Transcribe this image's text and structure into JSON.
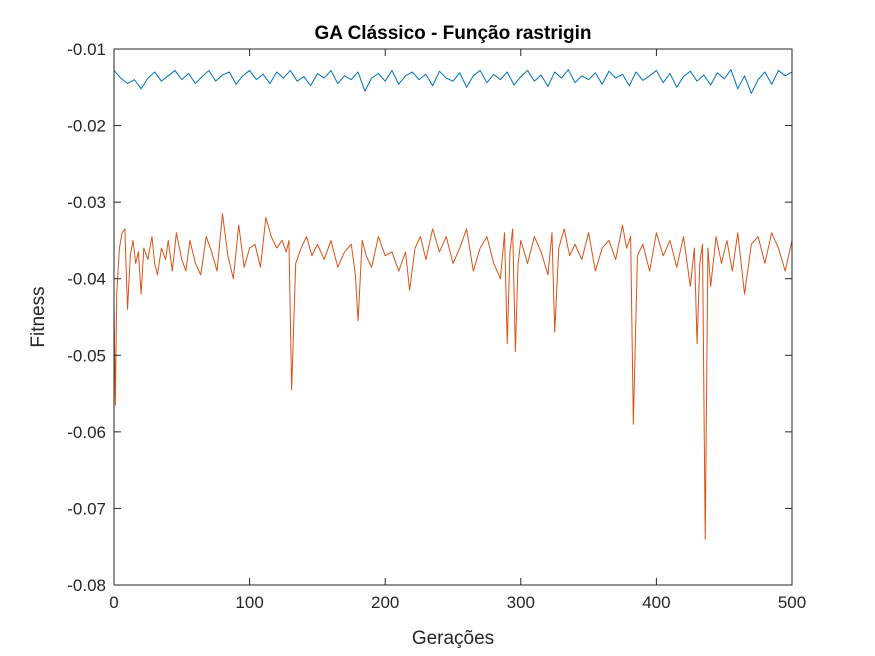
{
  "chart_data": {
    "type": "line",
    "title": "GA Clássico - Função rastrigin",
    "xlabel": "Gerações",
    "ylabel": "Fitness",
    "xlim": [
      0,
      500
    ],
    "ylim": [
      -0.08,
      -0.01
    ],
    "xticks": [
      0,
      100,
      200,
      300,
      400,
      500
    ],
    "yticks": [
      -0.08,
      -0.07,
      -0.06,
      -0.05,
      -0.04,
      -0.03,
      -0.02,
      -0.01
    ],
    "xtick_labels": [
      "0",
      "100",
      "200",
      "300",
      "400",
      "500"
    ],
    "ytick_labels": [
      "-0.08",
      "-0.07",
      "-0.06",
      "-0.05",
      "-0.04",
      "-0.03",
      "-0.02",
      "-0.01"
    ],
    "grid": false,
    "legend": "none",
    "series": [
      {
        "color": "#0072BD",
        "x": [
          0,
          5,
          10,
          15,
          20,
          25,
          30,
          35,
          40,
          45,
          50,
          55,
          60,
          65,
          70,
          75,
          80,
          85,
          90,
          95,
          100,
          105,
          110,
          115,
          120,
          125,
          130,
          135,
          140,
          145,
          150,
          155,
          160,
          165,
          170,
          175,
          180,
          185,
          190,
          195,
          200,
          205,
          210,
          215,
          220,
          225,
          230,
          235,
          240,
          245,
          250,
          255,
          260,
          265,
          270,
          275,
          280,
          285,
          290,
          295,
          300,
          305,
          310,
          315,
          320,
          325,
          330,
          335,
          340,
          345,
          350,
          355,
          360,
          365,
          370,
          375,
          380,
          385,
          390,
          395,
          400,
          405,
          410,
          415,
          420,
          425,
          430,
          435,
          440,
          445,
          450,
          455,
          460,
          465,
          470,
          475,
          480,
          485,
          490,
          495,
          500
        ],
        "y": [
          -0.0128,
          -0.0138,
          -0.0145,
          -0.014,
          -0.0152,
          -0.0138,
          -0.013,
          -0.0142,
          -0.0135,
          -0.0128,
          -0.014,
          -0.0132,
          -0.0145,
          -0.0136,
          -0.0128,
          -0.0142,
          -0.0134,
          -0.013,
          -0.0146,
          -0.0135,
          -0.0128,
          -0.014,
          -0.0133,
          -0.0145,
          -0.013,
          -0.0138,
          -0.0128,
          -0.0142,
          -0.0136,
          -0.0148,
          -0.0132,
          -0.0138,
          -0.0128,
          -0.0145,
          -0.0135,
          -0.014,
          -0.013,
          -0.0155,
          -0.0138,
          -0.0132,
          -0.0142,
          -0.0128,
          -0.0146,
          -0.0135,
          -0.013,
          -0.014,
          -0.0133,
          -0.0148,
          -0.0129,
          -0.0138,
          -0.0142,
          -0.0131,
          -0.015,
          -0.0135,
          -0.0128,
          -0.0144,
          -0.0133,
          -0.014,
          -0.013,
          -0.0147,
          -0.0136,
          -0.0128,
          -0.0142,
          -0.0134,
          -0.0149,
          -0.013,
          -0.0138,
          -0.0127,
          -0.0144,
          -0.0135,
          -0.014,
          -0.0131,
          -0.0146,
          -0.0129,
          -0.0138,
          -0.0133,
          -0.0148,
          -0.013,
          -0.0141,
          -0.0135,
          -0.0128,
          -0.0144,
          -0.0132,
          -0.015,
          -0.0136,
          -0.0129,
          -0.0142,
          -0.0134,
          -0.0147,
          -0.0131,
          -0.0139,
          -0.0127,
          -0.0152,
          -0.0135,
          -0.0158,
          -0.014,
          -0.013,
          -0.0146,
          -0.0128,
          -0.0135,
          -0.013
        ]
      },
      {
        "color": "#D95319",
        "x": [
          0,
          1,
          2,
          4,
          6,
          8,
          10,
          12,
          14,
          16,
          18,
          20,
          22,
          25,
          28,
          30,
          32,
          35,
          38,
          40,
          43,
          46,
          50,
          53,
          56,
          60,
          64,
          68,
          72,
          76,
          80,
          84,
          88,
          92,
          96,
          100,
          104,
          108,
          112,
          116,
          120,
          124,
          127,
          129,
          131,
          134,
          138,
          142,
          146,
          150,
          155,
          160,
          165,
          170,
          175,
          178,
          180,
          183,
          186,
          190,
          195,
          200,
          205,
          210,
          215,
          218,
          222,
          226,
          230,
          235,
          240,
          245,
          250,
          255,
          260,
          265,
          270,
          275,
          280,
          285,
          288,
          290,
          292,
          294,
          296,
          298,
          300,
          305,
          310,
          315,
          320,
          323,
          325,
          328,
          332,
          336,
          340,
          345,
          350,
          355,
          360,
          365,
          370,
          375,
          378,
          381,
          383,
          386,
          390,
          395,
          400,
          405,
          410,
          415,
          420,
          425,
          428,
          430,
          432,
          434,
          436,
          438,
          440,
          444,
          448,
          452,
          456,
          460,
          465,
          470,
          475,
          480,
          485,
          490,
          495,
          500
        ],
        "y": [
          -0.043,
          -0.0565,
          -0.042,
          -0.036,
          -0.034,
          -0.0335,
          -0.044,
          -0.037,
          -0.035,
          -0.038,
          -0.0365,
          -0.042,
          -0.036,
          -0.0375,
          -0.0345,
          -0.038,
          -0.0395,
          -0.036,
          -0.0375,
          -0.035,
          -0.039,
          -0.034,
          -0.0375,
          -0.039,
          -0.035,
          -0.038,
          -0.0395,
          -0.0345,
          -0.0365,
          -0.039,
          -0.0315,
          -0.037,
          -0.04,
          -0.033,
          -0.0385,
          -0.036,
          -0.0355,
          -0.0385,
          -0.032,
          -0.0345,
          -0.036,
          -0.035,
          -0.0365,
          -0.035,
          -0.0545,
          -0.038,
          -0.036,
          -0.0345,
          -0.037,
          -0.0355,
          -0.0375,
          -0.035,
          -0.0385,
          -0.0365,
          -0.0355,
          -0.0395,
          -0.0455,
          -0.035,
          -0.037,
          -0.0385,
          -0.0345,
          -0.037,
          -0.0365,
          -0.039,
          -0.0365,
          -0.0415,
          -0.036,
          -0.0345,
          -0.0375,
          -0.0335,
          -0.0365,
          -0.0345,
          -0.038,
          -0.036,
          -0.0335,
          -0.039,
          -0.036,
          -0.0345,
          -0.038,
          -0.04,
          -0.034,
          -0.0485,
          -0.0365,
          -0.0335,
          -0.0495,
          -0.038,
          -0.035,
          -0.038,
          -0.0345,
          -0.0365,
          -0.0395,
          -0.034,
          -0.047,
          -0.036,
          -0.0335,
          -0.037,
          -0.0355,
          -0.0375,
          -0.034,
          -0.039,
          -0.036,
          -0.035,
          -0.0375,
          -0.033,
          -0.036,
          -0.0345,
          -0.059,
          -0.037,
          -0.0355,
          -0.039,
          -0.034,
          -0.037,
          -0.035,
          -0.0385,
          -0.0345,
          -0.041,
          -0.036,
          -0.0485,
          -0.038,
          -0.0355,
          -0.074,
          -0.036,
          -0.041,
          -0.0345,
          -0.038,
          -0.035,
          -0.039,
          -0.034,
          -0.042,
          -0.0355,
          -0.0345,
          -0.038,
          -0.034,
          -0.036,
          -0.039,
          -0.035
        ]
      }
    ]
  }
}
